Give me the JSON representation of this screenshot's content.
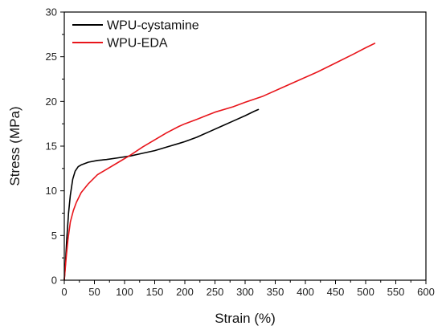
{
  "chart_data": {
    "type": "line",
    "title": "",
    "xlabel": "Strain (%)",
    "ylabel": "Stress (MPa)",
    "xlim": [
      0,
      600
    ],
    "ylim": [
      0,
      30
    ],
    "xticks": [
      0,
      50,
      100,
      150,
      200,
      250,
      300,
      350,
      400,
      450,
      500,
      550,
      600
    ],
    "yticks": [
      0,
      5,
      10,
      15,
      20,
      25,
      30
    ],
    "grid": false,
    "legend_position": "top-left",
    "series": [
      {
        "name": "WPU-cystamine",
        "color": "#000000",
        "x": [
          0,
          2,
          4,
          7,
          10,
          14,
          18,
          23,
          28,
          40,
          55,
          70,
          90,
          110,
          130,
          150,
          170,
          190,
          200,
          220,
          240,
          260,
          280,
          300,
          315,
          322
        ],
        "y": [
          0,
          2.0,
          4.5,
          7.5,
          9.5,
          11.3,
          12.2,
          12.7,
          12.9,
          13.2,
          13.4,
          13.5,
          13.7,
          13.9,
          14.2,
          14.5,
          14.9,
          15.3,
          15.5,
          16.0,
          16.6,
          17.2,
          17.8,
          18.4,
          18.9,
          19.1
        ]
      },
      {
        "name": "WPU-EDA",
        "color": "#e8151b",
        "x": [
          0,
          3,
          6,
          10,
          15,
          20,
          28,
          40,
          55,
          70,
          90,
          110,
          130,
          150,
          170,
          190,
          200,
          220,
          250,
          280,
          300,
          330,
          360,
          390,
          420,
          450,
          480,
          500,
          515
        ],
        "y": [
          0,
          2.5,
          4.5,
          6.5,
          7.8,
          8.7,
          9.8,
          10.8,
          11.8,
          12.4,
          13.2,
          14.0,
          14.9,
          15.7,
          16.5,
          17.2,
          17.5,
          18.0,
          18.8,
          19.4,
          19.9,
          20.6,
          21.5,
          22.4,
          23.3,
          24.3,
          25.3,
          26.0,
          26.5
        ]
      }
    ]
  }
}
